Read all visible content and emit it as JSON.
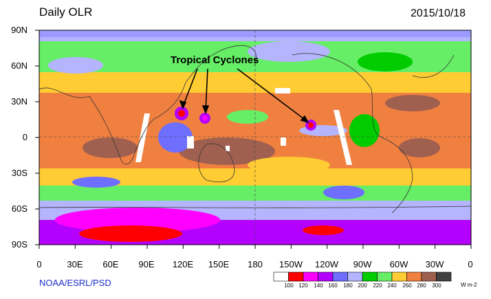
{
  "header": {
    "title": "Daily OLR",
    "date": "2015/10/18"
  },
  "footer": {
    "credit": "NOAA/ESRL/PSD"
  },
  "annotation": {
    "label": "Tropical Cyclones"
  },
  "axes": {
    "lat_labels": [
      "90N",
      "60N",
      "30N",
      "0",
      "30S",
      "60S",
      "90S"
    ],
    "lon_labels": [
      "0",
      "30E",
      "60E",
      "90E",
      "120E",
      "150E",
      "180",
      "150W",
      "120W",
      "90W",
      "60W",
      "30W",
      "0"
    ]
  },
  "colorbar": {
    "ticks": [
      "100",
      "120",
      "140",
      "160",
      "180",
      "200",
      "220",
      "240",
      "260",
      "280",
      "300"
    ],
    "unit": "W m-2",
    "colors": [
      "#ffffff",
      "#ff0000",
      "#ff00ff",
      "#b400ff",
      "#6e6eff",
      "#b4b4ff",
      "#00cc00",
      "#66ee66",
      "#ffcc33",
      "#f08040",
      "#a06050",
      "#404040"
    ]
  }
}
